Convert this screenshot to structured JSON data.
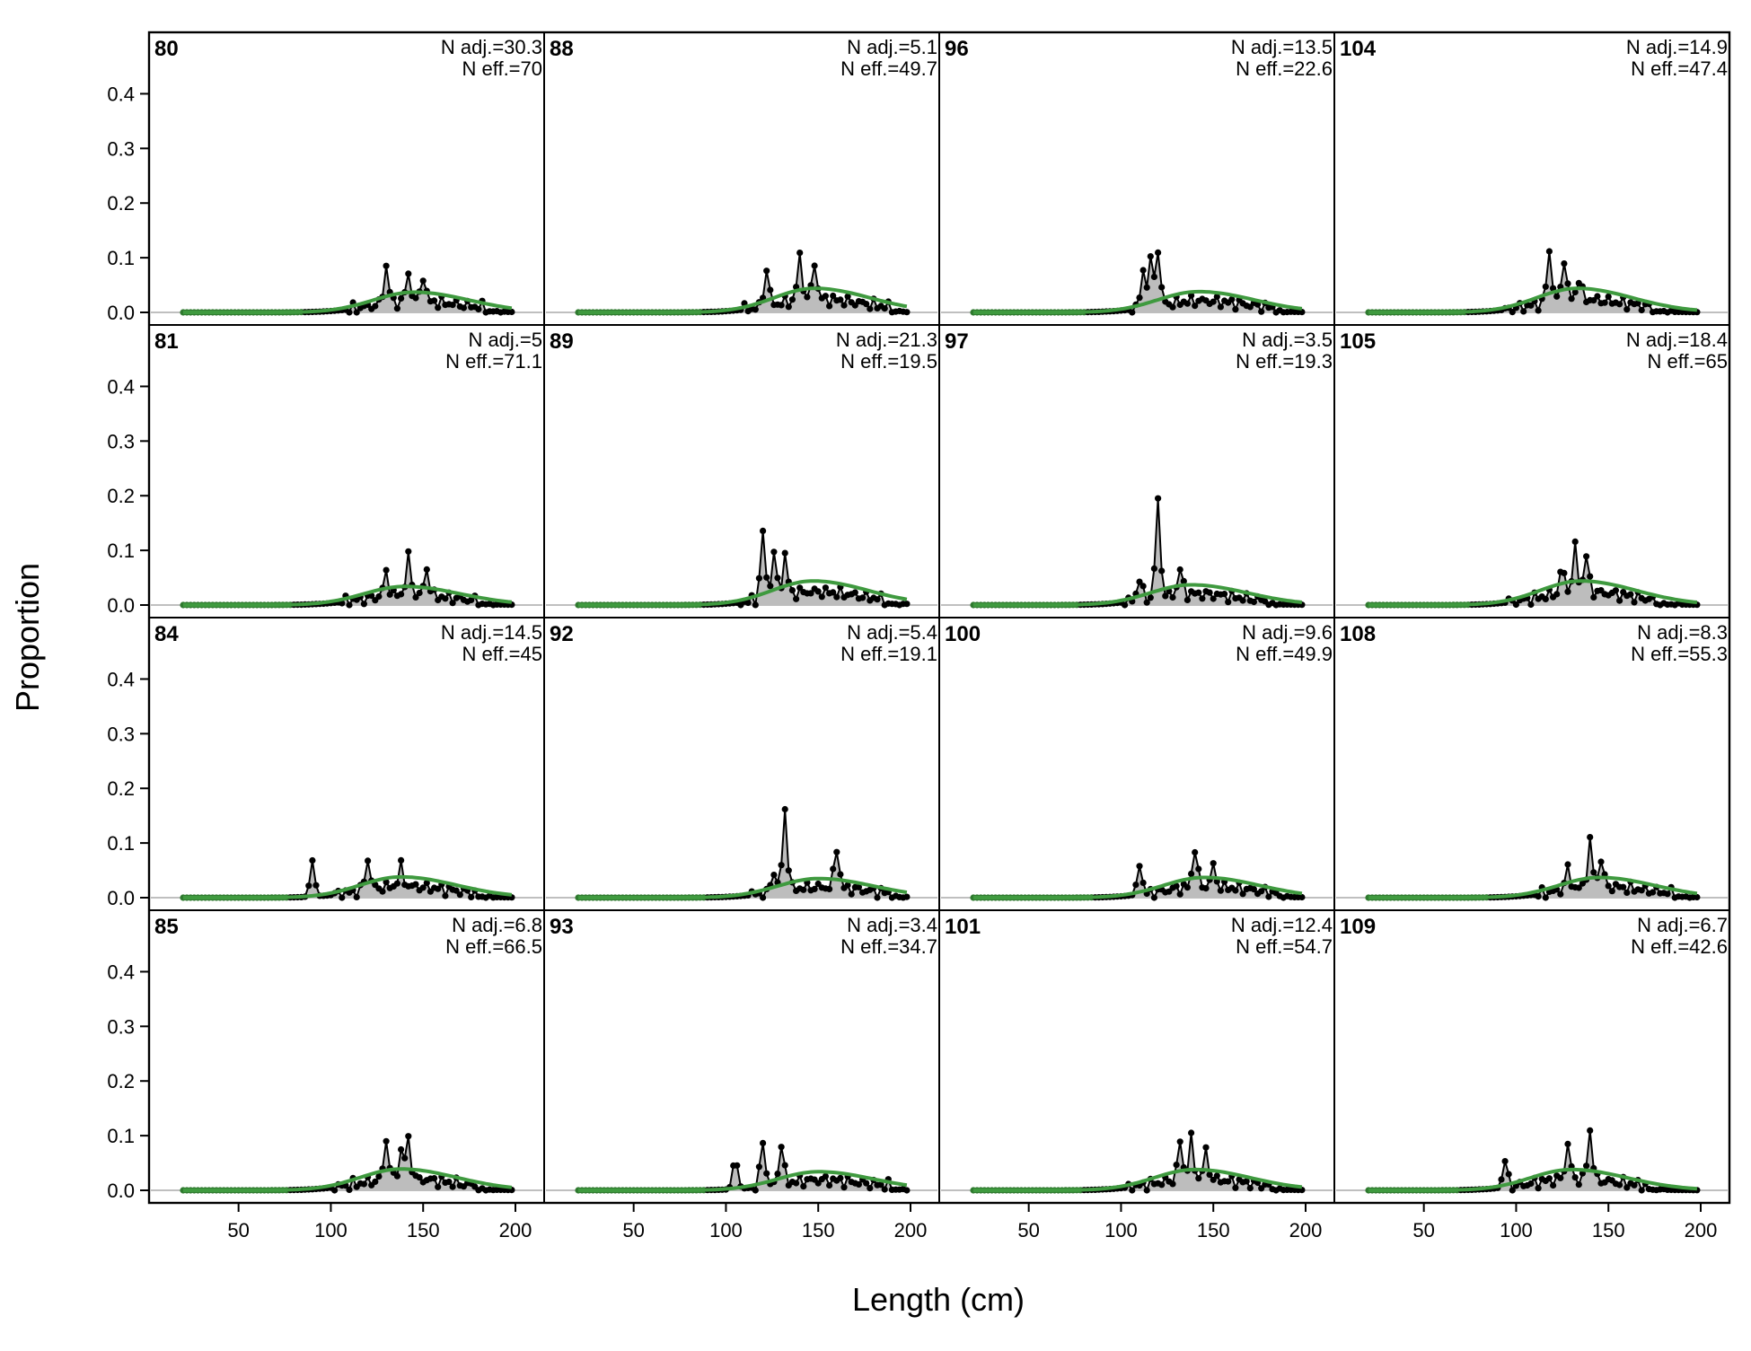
{
  "chart_data": {
    "type": "line",
    "xlabel": "Length (cm)",
    "ylabel": "Proportion",
    "xlim": [
      20,
      200
    ],
    "ylim": [
      0,
      0.45
    ],
    "x_ticks": [
      50,
      100,
      150,
      200
    ],
    "y_ticks": [
      0.0,
      0.1,
      0.2,
      0.3,
      0.4
    ],
    "y_tick_labels": [
      "0.0",
      "0.1",
      "0.2",
      "0.3",
      "0.4"
    ],
    "grid": false,
    "colors": {
      "observed_fill": "#bdbdbd",
      "observed_line": "#000000",
      "expected_line": "#3f9a3f",
      "zero_line": "#bfbfbf"
    },
    "panels": [
      {
        "label": "80",
        "n_adj": "N adj.=30.3",
        "n_eff": "N eff.=70",
        "peaks": [
          [
            130,
            0.08
          ],
          [
            142,
            0.06
          ],
          [
            150,
            0.055
          ]
        ],
        "expected_mode": 145,
        "expected_peak": 0.037
      },
      {
        "label": "88",
        "n_adj": "N adj.=5.1",
        "n_eff": "N eff.=49.7",
        "peaks": [
          [
            122,
            0.08
          ],
          [
            140,
            0.095
          ],
          [
            148,
            0.078
          ]
        ],
        "expected_mode": 148,
        "expected_peak": 0.044
      },
      {
        "label": "96",
        "n_adj": "N adj.=13.5",
        "n_eff": "N eff.=22.6",
        "peaks": [
          [
            112,
            0.078
          ],
          [
            116,
            0.095
          ],
          [
            120,
            0.118
          ]
        ],
        "expected_mode": 142,
        "expected_peak": 0.038
      },
      {
        "label": "104",
        "n_adj": "N adj.=14.9",
        "n_eff": "N eff.=47.4",
        "peaks": [
          [
            118,
            0.11
          ],
          [
            126,
            0.088
          ],
          [
            134,
            0.045
          ]
        ],
        "expected_mode": 133,
        "expected_peak": 0.044
      },
      {
        "label": "81",
        "n_adj": "N adj.=5",
        "n_eff": "N eff.=71.1",
        "peaks": [
          [
            130,
            0.05
          ],
          [
            142,
            0.082
          ],
          [
            152,
            0.058
          ]
        ],
        "expected_mode": 140,
        "expected_peak": 0.034
      },
      {
        "label": "89",
        "n_adj": "N adj.=21.3",
        "n_eff": "N eff.=19.5",
        "peaks": [
          [
            120,
            0.142
          ],
          [
            126,
            0.095
          ],
          [
            132,
            0.085
          ]
        ],
        "expected_mode": 147,
        "expected_peak": 0.044
      },
      {
        "label": "97",
        "n_adj": "N adj.=3.5",
        "n_eff": "N eff.=19.3",
        "peaks": [
          [
            110,
            0.048
          ],
          [
            120,
            0.205
          ],
          [
            132,
            0.055
          ]
        ],
        "expected_mode": 138,
        "expected_peak": 0.037
      },
      {
        "label": "105",
        "n_adj": "N adj.=18.4",
        "n_eff": "N eff.=65",
        "peaks": [
          [
            125,
            0.055
          ],
          [
            132,
            0.095
          ],
          [
            138,
            0.078
          ]
        ],
        "expected_mode": 135,
        "expected_peak": 0.044
      },
      {
        "label": "84",
        "n_adj": "N adj.=14.5",
        "n_eff": "N eff.=45",
        "peaks": [
          [
            90,
            0.078
          ],
          [
            120,
            0.065
          ],
          [
            138,
            0.042
          ]
        ],
        "expected_mode": 138,
        "expected_peak": 0.038
      },
      {
        "label": "92",
        "n_adj": "N adj.=5.4",
        "n_eff": "N eff.=19.1",
        "peaks": [
          [
            126,
            0.045
          ],
          [
            132,
            0.172
          ],
          [
            160,
            0.088
          ]
        ],
        "expected_mode": 150,
        "expected_peak": 0.035
      },
      {
        "label": "100",
        "n_adj": "N adj.=9.6",
        "n_eff": "N eff.=49.9",
        "peaks": [
          [
            110,
            0.072
          ],
          [
            140,
            0.085
          ],
          [
            150,
            0.045
          ]
        ],
        "expected_mode": 145,
        "expected_peak": 0.037
      },
      {
        "label": "108",
        "n_adj": "N adj.=8.3",
        "n_eff": "N eff.=55.3",
        "peaks": [
          [
            128,
            0.045
          ],
          [
            140,
            0.098
          ],
          [
            146,
            0.06
          ]
        ],
        "expected_mode": 145,
        "expected_peak": 0.037
      },
      {
        "label": "85",
        "n_adj": "N adj.=6.8",
        "n_eff": "N eff.=66.5",
        "peaks": [
          [
            130,
            0.085
          ],
          [
            138,
            0.058
          ],
          [
            142,
            0.085
          ]
        ],
        "expected_mode": 138,
        "expected_peak": 0.039
      },
      {
        "label": "93",
        "n_adj": "N adj.=3.4",
        "n_eff": "N eff.=34.7",
        "peaks": [
          [
            105,
            0.068
          ],
          [
            120,
            0.098
          ],
          [
            130,
            0.085
          ]
        ],
        "expected_mode": 150,
        "expected_peak": 0.034
      },
      {
        "label": "101",
        "n_adj": "N adj.=12.4",
        "n_eff": "N eff.=54.7",
        "peaks": [
          [
            132,
            0.082
          ],
          [
            138,
            0.085
          ],
          [
            146,
            0.06
          ]
        ],
        "expected_mode": 140,
        "expected_peak": 0.038
      },
      {
        "label": "109",
        "n_adj": "N adj.=6.7",
        "n_eff": "N eff.=42.6",
        "peaks": [
          [
            94,
            0.058
          ],
          [
            128,
            0.075
          ],
          [
            140,
            0.105
          ]
        ],
        "expected_mode": 130,
        "expected_peak": 0.038
      }
    ]
  }
}
